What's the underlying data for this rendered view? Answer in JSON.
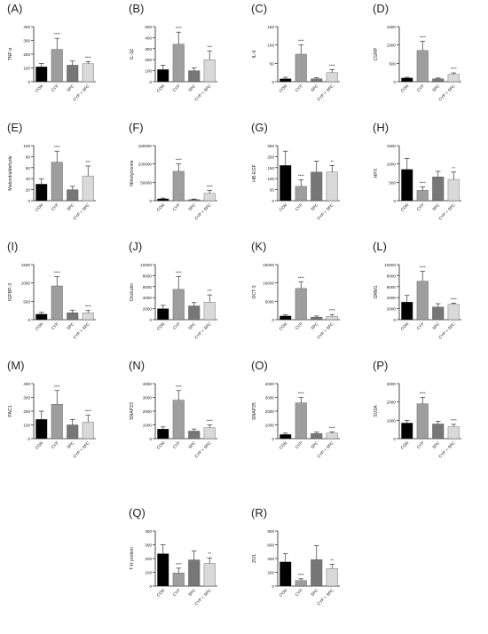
{
  "colors": {
    "CON": "#000000",
    "CYP": "#9e9e9e",
    "SPC": "#777777",
    "CYP + SPC": "#d9d9d9",
    "axis": "#222222"
  },
  "chart_data": [
    {
      "type": "bar",
      "panel_label": "(A)",
      "ylabel": "TNF-α",
      "categories": [
        "CON",
        "CYP",
        "SPC",
        "CYP + SPC"
      ],
      "values": [
        108,
        235,
        120,
        130
      ],
      "errors": [
        25,
        80,
        30,
        15
      ],
      "sig": [
        "",
        "****",
        "",
        "****"
      ],
      "ylim": [
        0,
        400
      ],
      "yticks": [
        0,
        100,
        200,
        300,
        400
      ],
      "ytick_labels": [
        "0",
        "100",
        "200",
        "300",
        "400"
      ]
    },
    {
      "type": "bar",
      "panel_label": "(B)",
      "ylabel": "IL-1β",
      "categories": [
        "CON",
        "CYP",
        "SPC",
        "CYP + SPC"
      ],
      "values": [
        110,
        340,
        100,
        200
      ],
      "errors": [
        40,
        110,
        25,
        80
      ],
      "sig": [
        "",
        "****",
        "",
        "***"
      ],
      "ylim": [
        0,
        500
      ],
      "yticks": [
        0,
        100,
        200,
        300,
        400,
        500
      ],
      "ytick_labels": [
        "0",
        "100",
        "200",
        "300",
        "400",
        "500"
      ]
    },
    {
      "type": "bar",
      "panel_label": "(C)",
      "ylabel": "IL-6",
      "categories": [
        "CON",
        "CYP",
        "SPC",
        "CYP + SPC"
      ],
      "values": [
        8,
        75,
        8,
        25
      ],
      "errors": [
        4,
        25,
        3,
        8
      ],
      "sig": [
        "",
        "****",
        "",
        "****"
      ],
      "ylim": [
        0,
        150
      ],
      "yticks": [
        0,
        50,
        100,
        150
      ],
      "ytick_labels": [
        "0",
        "50",
        "100",
        "150"
      ]
    },
    {
      "type": "bar",
      "panel_label": "(D)",
      "ylabel": "CGRP",
      "categories": [
        "CON",
        "CYP",
        "SPC",
        "CYP + SPC"
      ],
      "values": [
        100,
        850,
        80,
        200
      ],
      "errors": [
        20,
        250,
        20,
        40
      ],
      "sig": [
        "",
        "****",
        "",
        "****"
      ],
      "ylim": [
        0,
        1500
      ],
      "yticks": [
        0,
        500,
        1000,
        1500
      ],
      "ytick_labels": [
        "0",
        "500",
        "1000",
        "1500"
      ]
    },
    {
      "type": "bar",
      "panel_label": "(E)",
      "ylabel": "Malondialdehyde",
      "categories": [
        "CON",
        "CYP",
        "SPC",
        "CYP + SPC"
      ],
      "values": [
        30,
        70,
        20,
        45
      ],
      "errors": [
        10,
        20,
        6,
        18
      ],
      "sig": [
        "",
        "****",
        "",
        "***"
      ],
      "ylim": [
        0,
        100
      ],
      "yticks": [
        0,
        20,
        40,
        60,
        80,
        100
      ],
      "ytick_labels": [
        "0",
        "20",
        "40",
        "60",
        "80",
        "100"
      ]
    },
    {
      "type": "bar",
      "panel_label": "(F)",
      "ylabel": "Nitrotyrosine",
      "categories": [
        "CON",
        "CYP",
        "SPC",
        "CYP + SPC"
      ],
      "values": [
        5000,
        80000,
        3000,
        20000
      ],
      "errors": [
        2000,
        20000,
        1500,
        8000
      ],
      "sig": [
        "",
        "****",
        "",
        "****"
      ],
      "ylim": [
        0,
        150000
      ],
      "yticks": [
        0,
        50000,
        100000,
        150000
      ],
      "ytick_labels": [
        "0",
        "50000",
        "100000",
        "150000"
      ]
    },
    {
      "type": "bar",
      "panel_label": "(G)",
      "ylabel": "HB-EGF",
      "categories": [
        "CON",
        "CYP",
        "SPC",
        "CYP + SPC"
      ],
      "values": [
        160,
        65,
        130,
        130
      ],
      "errors": [
        65,
        30,
        50,
        30
      ],
      "sig": [
        "",
        "****",
        "",
        "**"
      ],
      "ylim": [
        0,
        250
      ],
      "yticks": [
        0,
        50,
        100,
        150,
        200,
        250
      ],
      "ytick_labels": [
        "0",
        "50",
        "100",
        "150",
        "200",
        "250"
      ]
    },
    {
      "type": "bar",
      "panel_label": "(H)",
      "ylabel": "HPX",
      "categories": [
        "CON",
        "CYP",
        "SPC",
        "CYP + SPC"
      ],
      "values": [
        850,
        280,
        650,
        580
      ],
      "errors": [
        300,
        100,
        150,
        200
      ],
      "sig": [
        "",
        "****",
        "",
        "**"
      ],
      "ylim": [
        0,
        1500
      ],
      "yticks": [
        0,
        500,
        1000,
        1500
      ],
      "ytick_labels": [
        "0",
        "500",
        "1000",
        "1500"
      ]
    },
    {
      "type": "bar",
      "panel_label": "(I)",
      "ylabel": "IGFBP-3",
      "categories": [
        "CON",
        "CYP",
        "SPC",
        "CYP + SPC"
      ],
      "values": [
        150,
        920,
        190,
        190
      ],
      "errors": [
        50,
        250,
        70,
        60
      ],
      "sig": [
        "",
        "****",
        "",
        "****"
      ],
      "ylim": [
        0,
        1500
      ],
      "yticks": [
        0,
        500,
        1000,
        1500
      ],
      "ytick_labels": [
        "0",
        "500",
        "1000",
        "1500"
      ]
    },
    {
      "type": "bar",
      "panel_label": "(J)",
      "ylabel": "Occludin",
      "categories": [
        "CON",
        "CYP",
        "SPC",
        "CYP + SPC"
      ],
      "values": [
        2000,
        5500,
        2500,
        3200
      ],
      "errors": [
        600,
        2300,
        600,
        1300
      ],
      "sig": [
        "",
        "****",
        "",
        "***"
      ],
      "ylim": [
        0,
        10000
      ],
      "yticks": [
        0,
        2000,
        4000,
        6000,
        8000,
        10000
      ],
      "ytick_labels": [
        "0",
        "2000",
        "4000",
        "6000",
        "8000",
        "10000"
      ]
    },
    {
      "type": "bar",
      "panel_label": "(K)",
      "ylabel": "OCT-3",
      "categories": [
        "CON",
        "CYP",
        "SPC",
        "CYP + SPC"
      ],
      "values": [
        1000,
        8500,
        700,
        900
      ],
      "errors": [
        300,
        1800,
        300,
        500
      ],
      "sig": [
        "",
        "****",
        "",
        "****"
      ],
      "ylim": [
        0,
        15000
      ],
      "yticks": [
        0,
        5000,
        10000,
        15000
      ],
      "ytick_labels": [
        "0",
        "5000",
        "10000",
        "15000"
      ]
    },
    {
      "type": "bar",
      "panel_label": "(L)",
      "ylabel": "ORM1",
      "categories": [
        "CON",
        "CYP",
        "SPC",
        "CYP + SPC"
      ],
      "values": [
        3200,
        7000,
        2300,
        2800
      ],
      "errors": [
        1200,
        1800,
        600,
        200
      ],
      "sig": [
        "",
        "****",
        "",
        "****"
      ],
      "ylim": [
        0,
        10000
      ],
      "yticks": [
        0,
        2000,
        4000,
        6000,
        8000,
        10000
      ],
      "ytick_labels": [
        "0",
        "2000",
        "4000",
        "6000",
        "8000",
        "10000"
      ]
    },
    {
      "type": "bar",
      "panel_label": "(M)",
      "ylabel": "PAC1",
      "categories": [
        "CON",
        "CYP",
        "SPC",
        "CYP + SPC"
      ],
      "values": [
        140,
        250,
        100,
        120
      ],
      "errors": [
        60,
        100,
        40,
        50
      ],
      "sig": [
        "",
        "****",
        "",
        "****"
      ],
      "ylim": [
        0,
        400
      ],
      "yticks": [
        0,
        100,
        200,
        300,
        400
      ],
      "ytick_labels": [
        "0",
        "100",
        "200",
        "300",
        "400"
      ]
    },
    {
      "type": "bar",
      "panel_label": "(N)",
      "ylabel": "SNAP23",
      "categories": [
        "CON",
        "CYP",
        "SPC",
        "CYP + SPC"
      ],
      "values": [
        700,
        2800,
        550,
        800
      ],
      "errors": [
        150,
        700,
        150,
        200
      ],
      "sig": [
        "",
        "****",
        "",
        "****"
      ],
      "ylim": [
        0,
        4000
      ],
      "yticks": [
        0,
        1000,
        2000,
        3000,
        4000
      ],
      "ytick_labels": [
        "0",
        "1000",
        "2000",
        "3000",
        "4000"
      ]
    },
    {
      "type": "bar",
      "panel_label": "(O)",
      "ylabel": "SNAP25",
      "categories": [
        "CON",
        "CYP",
        "SPC",
        "CYP + SPC"
      ],
      "values": [
        300,
        2600,
        380,
        400
      ],
      "errors": [
        100,
        400,
        100,
        100
      ],
      "sig": [
        "",
        "****",
        "",
        "****"
      ],
      "ylim": [
        0,
        4000
      ],
      "yticks": [
        0,
        1000,
        2000,
        3000,
        4000
      ],
      "ytick_labels": [
        "0",
        "1000",
        "2000",
        "3000",
        "4000"
      ]
    },
    {
      "type": "bar",
      "panel_label": "(P)",
      "ylabel": "SV2A",
      "categories": [
        "CON",
        "CYP",
        "SPC",
        "CYP + SPC"
      ],
      "values": [
        850,
        1900,
        800,
        650
      ],
      "errors": [
        150,
        350,
        150,
        130
      ],
      "sig": [
        "",
        "****",
        "",
        "****"
      ],
      "ylim": [
        0,
        3000
      ],
      "yticks": [
        0,
        1000,
        2000,
        3000
      ],
      "ytick_labels": [
        "0",
        "1000",
        "2000",
        "3000"
      ]
    },
    {
      "type": "bar",
      "panel_label": "(Q)",
      "ylabel": "T-H protein",
      "categories": [
        "CON",
        "CYP",
        "SPC",
        "CYP + SPC"
      ],
      "values": [
        235,
        95,
        190,
        165
      ],
      "errors": [
        65,
        35,
        65,
        40
      ],
      "sig": [
        "",
        "****",
        "",
        "**"
      ],
      "ylim": [
        0,
        400
      ],
      "yticks": [
        0,
        100,
        200,
        300,
        400
      ],
      "ytick_labels": [
        "0",
        "100",
        "200",
        "300",
        "400"
      ]
    },
    {
      "type": "bar",
      "panel_label": "(R)",
      "ylabel": "ZO1",
      "categories": [
        "CON",
        "CYP",
        "SPC",
        "CYP + SPC"
      ],
      "values": [
        350,
        80,
        385,
        255
      ],
      "errors": [
        120,
        25,
        200,
        60
      ],
      "sig": [
        "",
        "****",
        "",
        "**"
      ],
      "ylim": [
        0,
        800
      ],
      "yticks": [
        0,
        200,
        400,
        600,
        800
      ],
      "ytick_labels": [
        "0",
        "200",
        "400",
        "600",
        "800"
      ]
    }
  ]
}
